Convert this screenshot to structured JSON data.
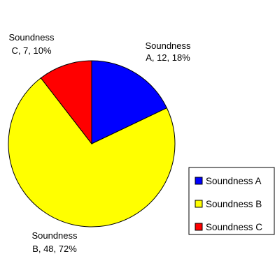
{
  "chart_data": {
    "type": "pie",
    "series": [
      {
        "label": "Soundness A",
        "value": 12,
        "percent": "18%",
        "color": "#0000FF",
        "label_lines": [
          "Soundness",
          "A, 12, 18%"
        ]
      },
      {
        "label": "Soundness B",
        "value": 48,
        "percent": "72%",
        "color": "#FFFF00",
        "label_lines": [
          "Soundness",
          "B, 48, 72%"
        ]
      },
      {
        "label": "Soundness C",
        "value": 7,
        "percent": "10%",
        "color": "#FF0000",
        "label_lines": [
          "Soundness",
          "C, 7, 10%"
        ]
      }
    ],
    "legend_position": "right",
    "title": "",
    "slice_border_color": "#000000"
  }
}
